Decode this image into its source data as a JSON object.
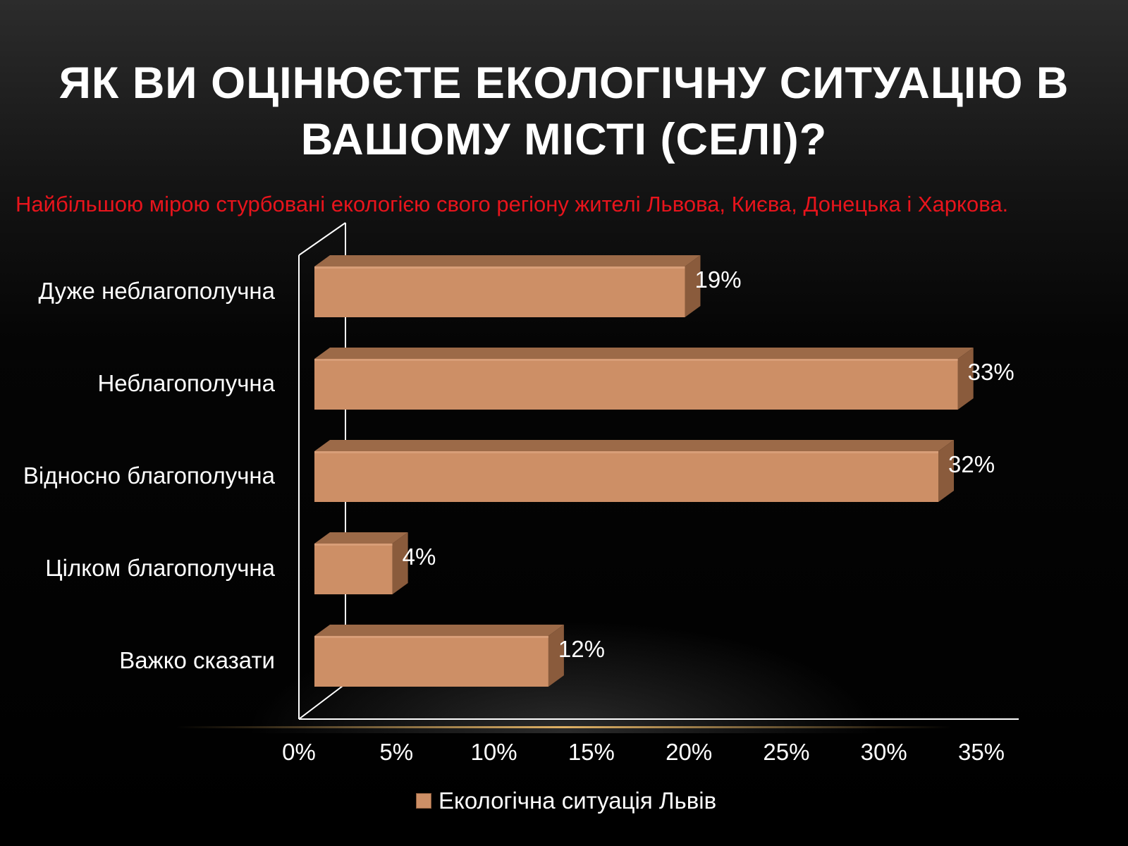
{
  "title": "Як ви оцінюєте екологічну ситуацію в вашому місті (селі)?",
  "subtitle": "Найбільшою мірою стурбовані екологією свого регіону жителі Львова, Києва, Донецька і Харкова.",
  "chart_data": {
    "type": "bar",
    "orientation": "horizontal",
    "categories": [
      "Дуже неблагополучна",
      "Неблагополучна",
      "Відносно благополучна",
      "Цілком благополучна",
      "Важко сказати"
    ],
    "series": [
      {
        "name": "Екологічна ситуація Львів",
        "values": [
          19,
          33,
          32,
          4,
          12
        ],
        "labels": [
          "19%",
          "33%",
          "32%",
          "4%",
          "12%"
        ]
      }
    ],
    "xlim": [
      0,
      35
    ],
    "xticks": [
      "0%",
      "5%",
      "10%",
      "15%",
      "20%",
      "25%",
      "30%",
      "35%"
    ],
    "legend": "bottom",
    "grid": false,
    "bar_color": "#cd8f66"
  }
}
